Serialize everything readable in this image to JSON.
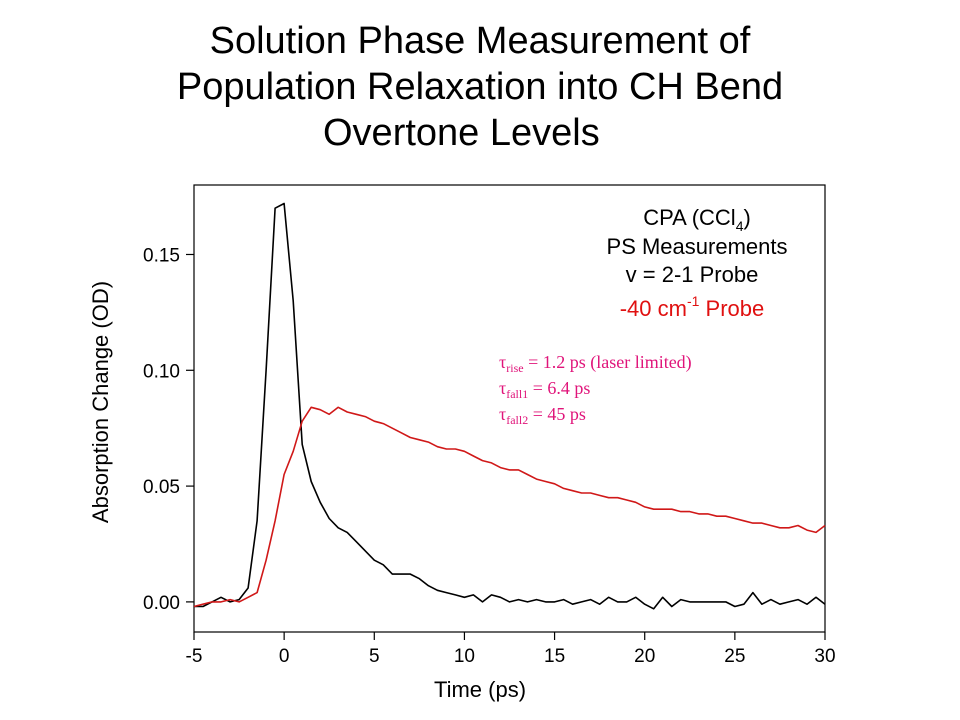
{
  "title_lines": [
    "Solution Phase Measurement of",
    "Population Relaxation into CH Bend",
    "Overtone Levels"
  ],
  "chart_data": {
    "type": "line",
    "title": "Solution Phase Measurement of Population Relaxation into CH Bend Overtone Levels",
    "xlabel": "Time (ps)",
    "ylabel": "Absorption Change (OD)",
    "xlim": [
      -5,
      30
    ],
    "ylim": [
      -0.013,
      0.18
    ],
    "xticks": [
      "-5",
      "0",
      "5",
      "10",
      "15",
      "20",
      "25",
      "30"
    ],
    "yticks": [
      "0.00",
      "0.05",
      "0.10",
      "0.15"
    ],
    "grid": false,
    "legend": {
      "position": "top-right",
      "lines": [
        "CPA (CCl",
        "4",
        ")",
        "PS Measurements",
        "v = 2-1 Probe",
        "-40 cm",
        "-1",
        " Probe"
      ]
    },
    "annotations": [
      {
        "sym": "τ",
        "sub": "rise",
        "text": " = 1.2 ps (laser limited)"
      },
      {
        "sym": "τ",
        "sub": "fall1",
        "text": " = 6.4 ps"
      },
      {
        "sym": "τ",
        "sub": "fall2",
        "text": " = 45 ps"
      }
    ],
    "series": [
      {
        "color": "#000000",
        "x": [
          -5,
          -4.5,
          -4,
          -3.5,
          -3,
          -2.5,
          -2,
          -1.5,
          -1,
          -0.5,
          0,
          0.5,
          1,
          1.5,
          2,
          2.5,
          3,
          3.5,
          4,
          4.5,
          5,
          5.5,
          6,
          6.5,
          7,
          7.5,
          8,
          8.5,
          9,
          9.5,
          10,
          10.5,
          11,
          11.5,
          12,
          12.5,
          13,
          13.5,
          14,
          14.5,
          15,
          15.5,
          16,
          16.5,
          17,
          17.5,
          18,
          18.5,
          19,
          19.5,
          20,
          20.5,
          21,
          21.5,
          22,
          22.5,
          23,
          23.5,
          24,
          24.5,
          25,
          25.5,
          26,
          26.5,
          27,
          27.5,
          28,
          28.5,
          29,
          29.5,
          30
        ],
        "values": [
          -0.002,
          -0.002,
          0.0,
          0.002,
          0.0,
          0.001,
          0.006,
          0.035,
          0.1,
          0.17,
          0.172,
          0.13,
          0.068,
          0.052,
          0.043,
          0.036,
          0.032,
          0.03,
          0.026,
          0.022,
          0.018,
          0.016,
          0.012,
          0.012,
          0.012,
          0.01,
          0.007,
          0.005,
          0.004,
          0.003,
          0.002,
          0.003,
          0.0,
          0.003,
          0.002,
          0.0,
          0.001,
          0.0,
          0.001,
          0.0,
          0.0,
          0.001,
          -0.001,
          0.0,
          0.001,
          -0.001,
          0.002,
          0.0,
          0.0,
          0.002,
          -0.001,
          -0.003,
          0.002,
          -0.002,
          0.001,
          0.0,
          0.0,
          0.0,
          0.0,
          0.0,
          -0.002,
          -0.001,
          0.004,
          -0.001,
          0.001,
          -0.001,
          0.0,
          0.001,
          -0.001,
          0.002,
          -0.001
        ]
      },
      {
        "color": "#d01818",
        "x": [
          -5,
          -4.5,
          -4,
          -3.5,
          -3,
          -2.5,
          -2,
          -1.5,
          -1,
          -0.5,
          0,
          0.5,
          1,
          1.5,
          2,
          2.5,
          3,
          3.5,
          4,
          4.5,
          5,
          5.5,
          6,
          6.5,
          7,
          7.5,
          8,
          8.5,
          9,
          9.5,
          10,
          10.5,
          11,
          11.5,
          12,
          12.5,
          13,
          13.5,
          14,
          14.5,
          15,
          15.5,
          16,
          16.5,
          17,
          17.5,
          18,
          18.5,
          19,
          19.5,
          20,
          20.5,
          21,
          21.5,
          22,
          22.5,
          23,
          23.5,
          24,
          24.5,
          25,
          25.5,
          26,
          26.5,
          27,
          27.5,
          28,
          28.5,
          29,
          29.5,
          30
        ],
        "values": [
          -0.002,
          -0.001,
          0.0,
          0.0,
          0.001,
          0.0,
          0.002,
          0.004,
          0.018,
          0.035,
          0.055,
          0.065,
          0.078,
          0.084,
          0.083,
          0.081,
          0.084,
          0.082,
          0.081,
          0.08,
          0.078,
          0.077,
          0.075,
          0.073,
          0.071,
          0.07,
          0.069,
          0.067,
          0.066,
          0.066,
          0.065,
          0.063,
          0.061,
          0.06,
          0.058,
          0.057,
          0.057,
          0.055,
          0.053,
          0.052,
          0.051,
          0.049,
          0.048,
          0.047,
          0.047,
          0.046,
          0.045,
          0.045,
          0.044,
          0.043,
          0.041,
          0.04,
          0.04,
          0.04,
          0.039,
          0.039,
          0.038,
          0.038,
          0.037,
          0.037,
          0.036,
          0.035,
          0.034,
          0.034,
          0.033,
          0.032,
          0.032,
          0.033,
          0.031,
          0.03,
          0.033
        ]
      }
    ]
  }
}
